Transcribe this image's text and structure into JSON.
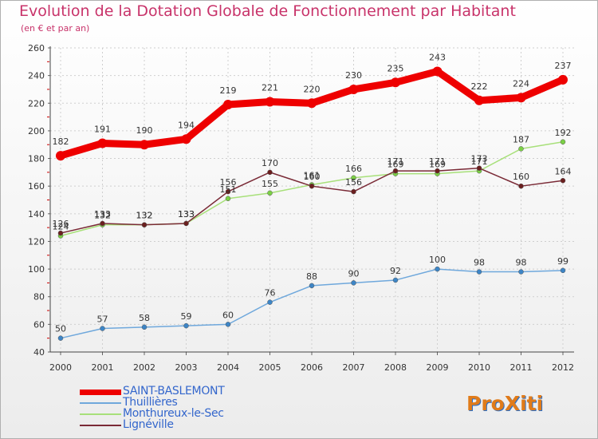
{
  "title": "Evolution de la Dotation Globale de Fonctionnement par Habitant",
  "subtitle": "(en € et par an)",
  "logo_text": "ProXiti",
  "colors": {
    "title": "#c8336a",
    "legend_text": "#3366cc",
    "axis": "#333333",
    "grid": "#cfcfcf"
  },
  "chart_data": {
    "type": "line",
    "title": "Evolution de la Dotation Globale de Fonctionnement par Habitant",
    "subtitle": "(en € et par an)",
    "xlabel": "",
    "ylabel": "",
    "ylim": [
      40,
      260
    ],
    "yticks": [
      40,
      60,
      80,
      100,
      120,
      140,
      160,
      180,
      200,
      220,
      240,
      260
    ],
    "grid": true,
    "legend_position": "bottom-left",
    "x": [
      "2000",
      "2001",
      "2002",
      "2003",
      "2004",
      "2005",
      "2006",
      "2007",
      "2008",
      "2009",
      "2010",
      "2011",
      "2012"
    ],
    "series": [
      {
        "name": "SAINT-BASLEMONT",
        "color": "#ee0000",
        "values": [
          182,
          191,
          190,
          194,
          219,
          221,
          220,
          230,
          235,
          243,
          222,
          224,
          237
        ]
      },
      {
        "name": "Thuillières",
        "color": "#6fa8dc",
        "marker_color": "#3d85c6",
        "values": [
          50,
          57,
          58,
          59,
          60,
          76,
          88,
          90,
          92,
          100,
          98,
          98,
          99
        ]
      },
      {
        "name": "Monthureux-le-Sec",
        "color": "#a8e07a",
        "marker_color": "#7bd045",
        "values": [
          124,
          132,
          132,
          133,
          151,
          155,
          161,
          166,
          169,
          169,
          171,
          187,
          192
        ]
      },
      {
        "name": "Lignéville",
        "color": "#7a2a36",
        "marker_color": "#6b1f1f",
        "values": [
          126,
          133,
          132,
          133,
          156,
          170,
          160,
          156,
          171,
          171,
          173,
          160,
          164
        ]
      }
    ]
  }
}
